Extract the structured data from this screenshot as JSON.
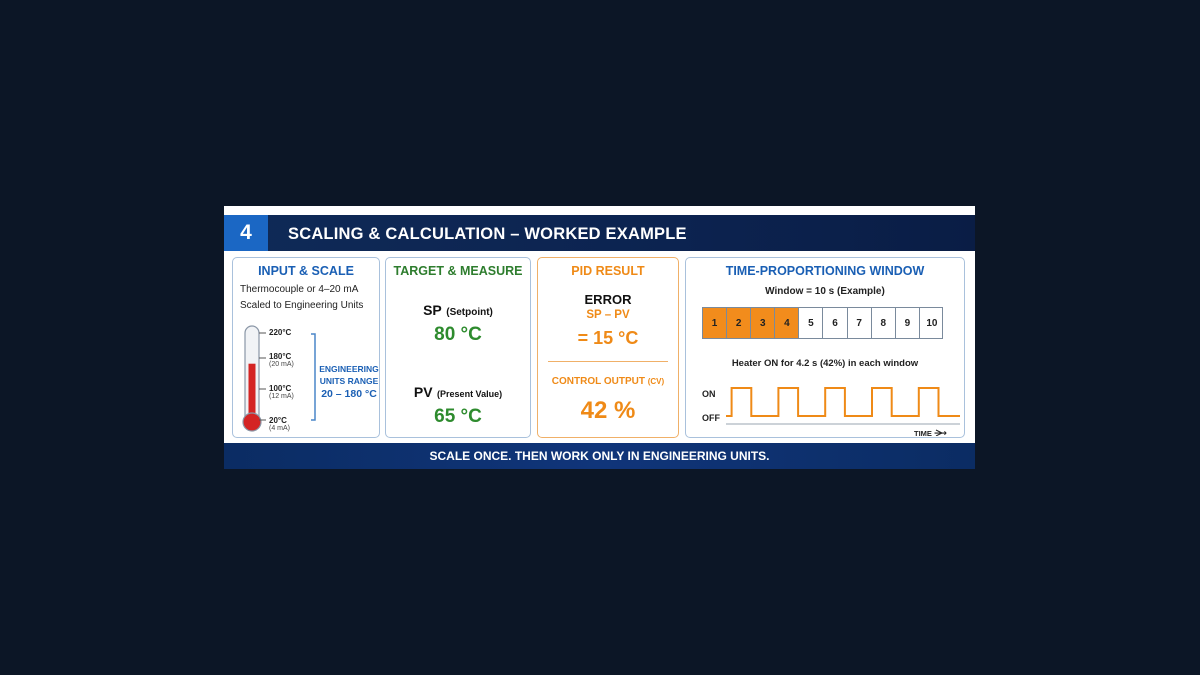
{
  "header": {
    "number": "4",
    "title": "SCALING & CALCULATION – WORKED EXAMPLE"
  },
  "input_scale": {
    "title": "INPUT & SCALE",
    "line1": "Thermocouple or 4–20 mA",
    "line2": "Scaled to Engineering Units",
    "thermometer_fill_fraction": 0.62,
    "ticks": [
      {
        "temp": "220°C",
        "ma": ""
      },
      {
        "temp": "180°C",
        "ma": "(20 mA)"
      },
      {
        "temp": "100°C",
        "ma": "(12 mA)"
      },
      {
        "temp": "20°C",
        "ma": "(4 mA)"
      }
    ],
    "range_label_1": "ENGINEERING",
    "range_label_2": "UNITS RANGE",
    "range_value": "20 – 180 °C"
  },
  "target_measure": {
    "title": "TARGET & MEASURE",
    "sp_label": "SP",
    "sp_desc": "(Setpoint)",
    "sp_value": "80 °C",
    "pv_label": "PV",
    "pv_desc": "(Present Value)",
    "pv_value": "65 °C"
  },
  "pid_result": {
    "title": "PID RESULT",
    "error_label": "ERROR",
    "error_formula": "SP – PV",
    "error_value": "= 15 °C",
    "cv_label": "CONTROL OUTPUT",
    "cv_abbr": "(CV)",
    "cv_value": "42 %"
  },
  "tpw": {
    "title": "TIME-PROPORTIONING WINDOW",
    "window_label": "Window = 10 s (Example)",
    "cells": [
      "1",
      "2",
      "3",
      "4",
      "5",
      "6",
      "7",
      "8",
      "9",
      "10"
    ],
    "on_cells": 4,
    "heater_text": "Heater ON for 4.2 s (42%) in each window",
    "on_label": "ON",
    "off_label": "OFF",
    "time_label": "TIME",
    "pulse_count": 5,
    "duty": 0.42
  },
  "footer": {
    "text": "SCALE ONCE. THEN WORK ONLY IN ENGINEERING UNITS."
  },
  "colors": {
    "blue": "#1a5fb4",
    "green": "#2e8b2e",
    "orange": "#ef8a17",
    "navy": "#0f2a57"
  }
}
